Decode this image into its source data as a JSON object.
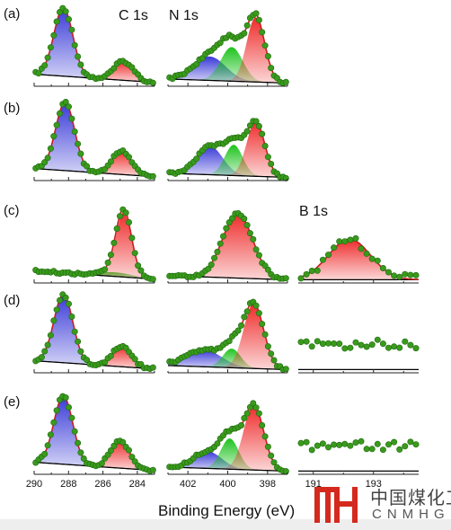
{
  "chart_data": {
    "type": "line",
    "xlabel": "Binding Energy (eV)",
    "column_titles": [
      "C 1s",
      "N 1s",
      "B 1s"
    ],
    "row_labels": [
      "(a)",
      "(b)",
      "(c)",
      "(d)",
      "(e)"
    ],
    "axes": {
      "C": {
        "xlim": [
          290,
          283
        ],
        "ticks": [
          290,
          288,
          286,
          284
        ]
      },
      "N": {
        "xlim": [
          403,
          397
        ],
        "ticks": [
          402,
          400,
          398
        ]
      },
      "B": {
        "xlim": [
          190.5,
          194.5
        ],
        "ticks": [
          191,
          193
        ],
        "tick_labels": [
          "191",
          "193"
        ]
      }
    },
    "peak_colors": {
      "blue": "#2f2fd6",
      "green": "#12c012",
      "red": "#ee2020",
      "envelope": "#c81e1e",
      "baseline": "#000000",
      "data": "#3a9a1c"
    },
    "panels": [
      {
        "row": "(a)",
        "spectrum": "C 1s",
        "peaks": [
          {
            "color": "blue",
            "center": 288.3,
            "amplitude": 1.0,
            "width": 0.55
          },
          {
            "color": "red",
            "center": 284.8,
            "amplitude": 0.28,
            "width": 0.55
          }
        ]
      },
      {
        "row": "(a)",
        "spectrum": "N 1s",
        "peaks": [
          {
            "color": "blue",
            "center": 400.9,
            "amplitude": 0.35,
            "width": 0.8
          },
          {
            "color": "green",
            "center": 399.8,
            "amplitude": 0.5,
            "width": 0.55
          },
          {
            "color": "red",
            "center": 398.6,
            "amplitude": 0.95,
            "width": 0.45
          }
        ]
      },
      {
        "row": "(b)",
        "spectrum": "C 1s",
        "peaks": [
          {
            "color": "blue",
            "center": 288.2,
            "amplitude": 1.0,
            "width": 0.55
          },
          {
            "color": "red",
            "center": 284.9,
            "amplitude": 0.35,
            "width": 0.55
          }
        ]
      },
      {
        "row": "(b)",
        "spectrum": "N 1s",
        "peaks": [
          {
            "color": "blue",
            "center": 400.9,
            "amplitude": 0.42,
            "width": 0.65
          },
          {
            "color": "green",
            "center": 399.7,
            "amplitude": 0.45,
            "width": 0.45
          },
          {
            "color": "red",
            "center": 398.6,
            "amplitude": 0.8,
            "width": 0.45
          }
        ]
      },
      {
        "row": "(c)",
        "spectrum": "C 1s",
        "peaks": [
          {
            "color": "green",
            "center": 285.3,
            "amplitude": 0.06,
            "width": 1.0
          },
          {
            "color": "red",
            "center": 284.8,
            "amplitude": 0.95,
            "width": 0.45
          }
        ]
      },
      {
        "row": "(c)",
        "spectrum": "N 1s",
        "peaks": [
          {
            "color": "red",
            "center": 399.5,
            "amplitude": 0.95,
            "width": 0.75
          }
        ]
      },
      {
        "row": "(c)",
        "spectrum": "B 1s",
        "peaks": [
          {
            "color": "red",
            "center": 192.2,
            "amplitude": 0.82,
            "width": 0.7
          }
        ]
      },
      {
        "row": "(d)",
        "spectrum": "C 1s",
        "peaks": [
          {
            "color": "blue",
            "center": 288.3,
            "amplitude": 1.0,
            "width": 0.55
          },
          {
            "color": "red",
            "center": 284.9,
            "amplitude": 0.3,
            "width": 0.55
          }
        ]
      },
      {
        "row": "(d)",
        "spectrum": "N 1s",
        "peaks": [
          {
            "color": "blue",
            "center": 401.2,
            "amplitude": 0.25,
            "width": 0.9
          },
          {
            "color": "green",
            "center": 399.8,
            "amplitude": 0.28,
            "width": 0.45
          },
          {
            "color": "red",
            "center": 398.7,
            "amplitude": 0.95,
            "width": 0.5
          }
        ]
      },
      {
        "row": "(d)",
        "spectrum": "B 1s",
        "peaks": []
      },
      {
        "row": "(e)",
        "spectrum": "C 1s",
        "peaks": [
          {
            "color": "blue",
            "center": 288.3,
            "amplitude": 1.0,
            "width": 0.55
          },
          {
            "color": "red",
            "center": 285.0,
            "amplitude": 0.4,
            "width": 0.55
          }
        ]
      },
      {
        "row": "(e)",
        "spectrum": "N 1s",
        "peaks": [
          {
            "color": "blue",
            "center": 401.0,
            "amplitude": 0.25,
            "width": 0.7
          },
          {
            "color": "green",
            "center": 399.9,
            "amplitude": 0.45,
            "width": 0.45
          },
          {
            "color": "red",
            "center": 398.7,
            "amplitude": 0.95,
            "width": 0.5
          }
        ]
      },
      {
        "row": "(e)",
        "spectrum": "B 1s",
        "peaks": []
      }
    ]
  },
  "watermark": {
    "cn": "中国煤化工",
    "en": "CNMHG"
  }
}
